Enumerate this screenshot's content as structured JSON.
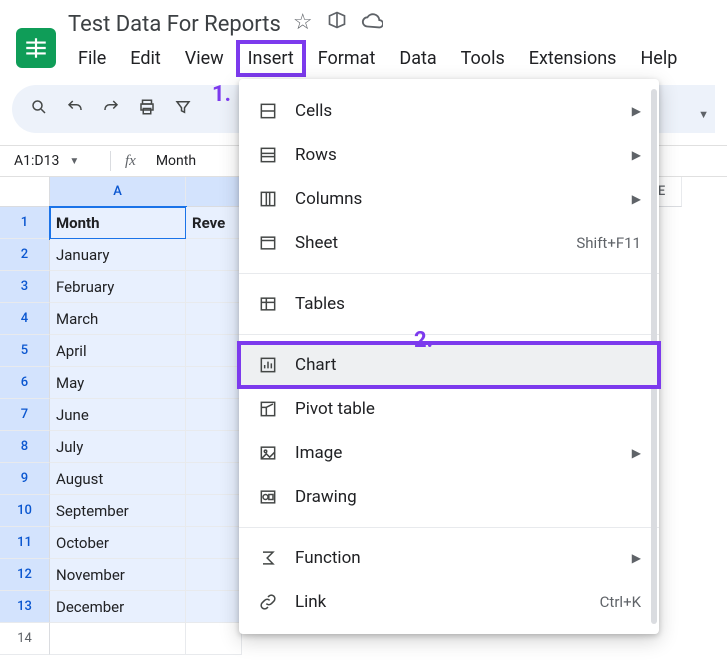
{
  "doc": {
    "title": "Test Data For Reports"
  },
  "menubar": [
    "File",
    "Edit",
    "View",
    "Insert",
    "Format",
    "Data",
    "Tools",
    "Extensions",
    "Help"
  ],
  "active_menu_index": 3,
  "namebox": "A1:D13",
  "formula_value": "Month",
  "annotations": {
    "step1": "1.",
    "step2": "2."
  },
  "columns": {
    "a": "A",
    "b": "B_partial",
    "e": "E"
  },
  "col_b_header_visible": "Reve",
  "rows": [
    {
      "n": 1,
      "a": "Month",
      "sel": true,
      "header": true,
      "focus": true
    },
    {
      "n": 2,
      "a": "January",
      "sel": true
    },
    {
      "n": 3,
      "a": "February",
      "sel": true
    },
    {
      "n": 4,
      "a": "March",
      "sel": true
    },
    {
      "n": 5,
      "a": "April",
      "sel": true
    },
    {
      "n": 6,
      "a": "May",
      "sel": true
    },
    {
      "n": 7,
      "a": "June",
      "sel": true
    },
    {
      "n": 8,
      "a": "July",
      "sel": true
    },
    {
      "n": 9,
      "a": "August",
      "sel": true
    },
    {
      "n": 10,
      "a": "September",
      "sel": true
    },
    {
      "n": 11,
      "a": "October",
      "sel": true
    },
    {
      "n": 12,
      "a": "November",
      "sel": true
    },
    {
      "n": 13,
      "a": "December",
      "sel": true
    },
    {
      "n": 14,
      "a": "",
      "sel": false
    }
  ],
  "insert_menu": [
    {
      "label": "Cells",
      "icon": "cells",
      "sub": true
    },
    {
      "label": "Rows",
      "icon": "rows",
      "sub": true
    },
    {
      "label": "Columns",
      "icon": "cols",
      "sub": true
    },
    {
      "label": "Sheet",
      "icon": "sheet",
      "shortcut": "Shift+F11"
    },
    {
      "sep": true
    },
    {
      "label": "Tables",
      "icon": "table"
    },
    {
      "sep": true
    },
    {
      "label": "Chart",
      "icon": "chart",
      "highlight": true
    },
    {
      "label": "Pivot table",
      "icon": "pivot"
    },
    {
      "label": "Image",
      "icon": "image",
      "sub": true
    },
    {
      "label": "Drawing",
      "icon": "drawing"
    },
    {
      "sep": true
    },
    {
      "label": "Function",
      "icon": "sigma",
      "sub": true
    },
    {
      "label": "Link",
      "icon": "link",
      "shortcut": "Ctrl+K"
    }
  ],
  "colors": {
    "brand": "#0f9d58",
    "accent": "#7c3aed",
    "selection": "#d3e3fd",
    "cell_sel": "#e8f0fe",
    "focus": "#1a73e8"
  }
}
